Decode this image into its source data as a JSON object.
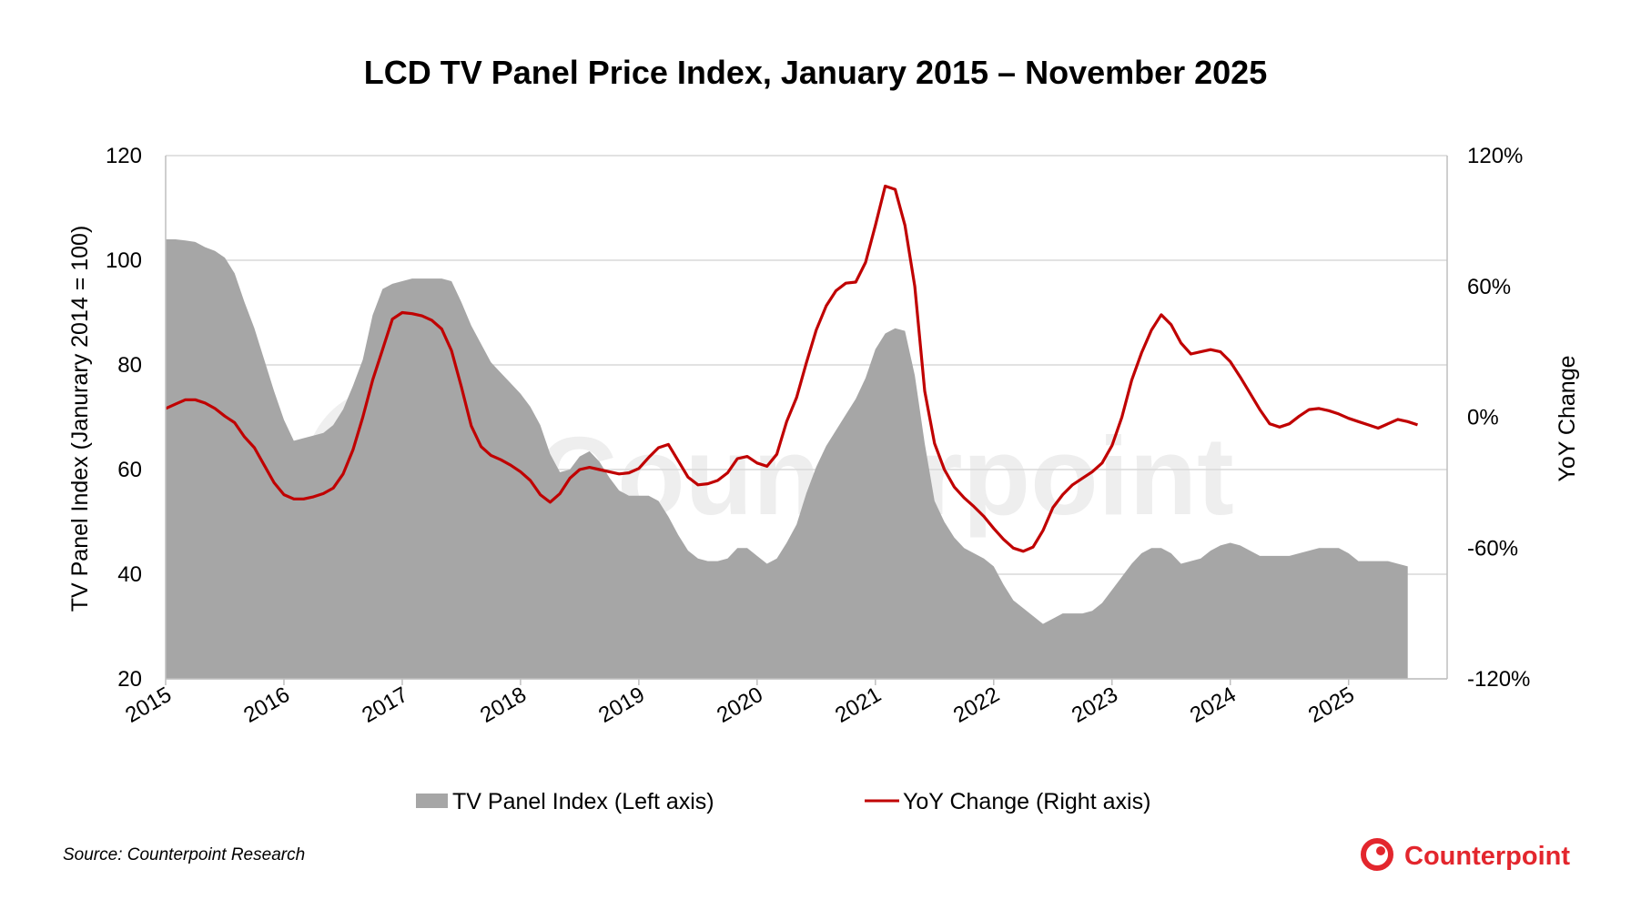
{
  "colors": {
    "area_fill": "#a6a6a6",
    "line": "#c00000",
    "grid": "#d9d9d9",
    "brand": "#e3262d",
    "watermark": "#eeeeee"
  },
  "logo": {
    "name": "Counterpoint",
    "icon": "counterpoint-logo-icon"
  },
  "watermark": {
    "text": "Counterpoint"
  },
  "source": "Source: Counterpoint Research",
  "chart_data": {
    "type": "area",
    "title": "LCD TV Panel Price Index, January 2015 – November 2025",
    "grid": true,
    "legend_position": "bottom",
    "x_tick_labels": [
      "2015",
      "2016",
      "2017",
      "2018",
      "2019",
      "2020",
      "2021",
      "2022",
      "2023",
      "2024",
      "2025"
    ],
    "y_left": {
      "label": "TV Panel Index (Janurary 2014 = 100)",
      "range": [
        20,
        120
      ],
      "ticks": [
        "20",
        "40",
        "60",
        "80",
        "100",
        "120"
      ]
    },
    "y_right": {
      "label": "YoY Change",
      "range": [
        -120,
        120
      ],
      "ticks": [
        "-120%",
        "-60%",
        "0%",
        "60%",
        "120%"
      ]
    },
    "x_start": "2015-01",
    "x_end": "2025-11",
    "series": [
      {
        "name": "TV Panel Index (Left axis)",
        "type": "area",
        "axis": "left",
        "points": [
          [
            "2015-01",
            104
          ],
          [
            "2015-02",
            104
          ],
          [
            "2015-03",
            103.8
          ],
          [
            "2015-04",
            103.5
          ],
          [
            "2015-05",
            102.5
          ],
          [
            "2015-06",
            101.8
          ],
          [
            "2015-07",
            100.5
          ],
          [
            "2015-08",
            97.5
          ],
          [
            "2015-09",
            92
          ],
          [
            "2015-10",
            87
          ],
          [
            "2015-11",
            81
          ],
          [
            "2015-12",
            75
          ],
          [
            "2016-01",
            69.5
          ],
          [
            "2016-02",
            65.5
          ],
          [
            "2016-03",
            66
          ],
          [
            "2016-04",
            66.5
          ],
          [
            "2016-05",
            67
          ],
          [
            "2016-06",
            68.5
          ],
          [
            "2016-07",
            71.5
          ],
          [
            "2016-08",
            76
          ],
          [
            "2016-09",
            81
          ],
          [
            "2016-10",
            89.5
          ],
          [
            "2016-11",
            94.5
          ],
          [
            "2016-12",
            95.5
          ],
          [
            "2017-01",
            96
          ],
          [
            "2017-02",
            96.5
          ],
          [
            "2017-03",
            96.5
          ],
          [
            "2017-04",
            96.5
          ],
          [
            "2017-05",
            96.5
          ],
          [
            "2017-06",
            96
          ],
          [
            "2017-07",
            92
          ],
          [
            "2017-08",
            87.5
          ],
          [
            "2017-09",
            84
          ],
          [
            "2017-10",
            80.5
          ],
          [
            "2017-11",
            78.5
          ],
          [
            "2017-12",
            76.5
          ],
          [
            "2018-01",
            74.5
          ],
          [
            "2018-02",
            72
          ],
          [
            "2018-03",
            68.5
          ],
          [
            "2018-04",
            63
          ],
          [
            "2018-05",
            59.5
          ],
          [
            "2018-06",
            60
          ],
          [
            "2018-07",
            62.5
          ],
          [
            "2018-08",
            63.5
          ],
          [
            "2018-09",
            61.5
          ],
          [
            "2018-10",
            58.5
          ],
          [
            "2018-11",
            56
          ],
          [
            "2018-12",
            55
          ],
          [
            "2019-01",
            55
          ],
          [
            "2019-02",
            55
          ],
          [
            "2019-03",
            54
          ],
          [
            "2019-04",
            51
          ],
          [
            "2019-05",
            47.5
          ],
          [
            "2019-06",
            44.5
          ],
          [
            "2019-07",
            43
          ],
          [
            "2019-08",
            42.5
          ],
          [
            "2019-09",
            42.5
          ],
          [
            "2019-10",
            43
          ],
          [
            "2019-11",
            45
          ],
          [
            "2019-12",
            45
          ],
          [
            "2020-01",
            43.5
          ],
          [
            "2020-02",
            42
          ],
          [
            "2020-03",
            43
          ],
          [
            "2020-04",
            46
          ],
          [
            "2020-05",
            49.5
          ],
          [
            "2020-06",
            55.5
          ],
          [
            "2020-07",
            60.5
          ],
          [
            "2020-08",
            64.5
          ],
          [
            "2020-09",
            67.5
          ],
          [
            "2020-10",
            70.5
          ],
          [
            "2020-11",
            73.5
          ],
          [
            "2020-12",
            77.5
          ],
          [
            "2021-01",
            83
          ],
          [
            "2021-02",
            86
          ],
          [
            "2021-03",
            87
          ],
          [
            "2021-04",
            86.5
          ],
          [
            "2021-05",
            78
          ],
          [
            "2021-06",
            65
          ],
          [
            "2021-07",
            54
          ],
          [
            "2021-08",
            50
          ],
          [
            "2021-09",
            47
          ],
          [
            "2021-10",
            45
          ],
          [
            "2021-11",
            44
          ],
          [
            "2021-12",
            43
          ],
          [
            "2022-01",
            41.5
          ],
          [
            "2022-02",
            38
          ],
          [
            "2022-03",
            35
          ],
          [
            "2022-04",
            33.5
          ],
          [
            "2022-05",
            32
          ],
          [
            "2022-06",
            30.5
          ],
          [
            "2022-07",
            31.5
          ],
          [
            "2022-08",
            32.5
          ],
          [
            "2022-09",
            32.5
          ],
          [
            "2022-10",
            32.5
          ],
          [
            "2022-11",
            33
          ],
          [
            "2022-12",
            34.5
          ],
          [
            "2023-01",
            37
          ],
          [
            "2023-02",
            39.5
          ],
          [
            "2023-03",
            42
          ],
          [
            "2023-04",
            44
          ],
          [
            "2023-05",
            45
          ],
          [
            "2023-06",
            45
          ],
          [
            "2023-07",
            44
          ],
          [
            "2023-08",
            42
          ],
          [
            "2023-09",
            42.5
          ],
          [
            "2023-10",
            43
          ],
          [
            "2023-11",
            44.5
          ],
          [
            "2023-12",
            45.5
          ],
          [
            "2024-01",
            46
          ],
          [
            "2024-02",
            45.5
          ],
          [
            "2024-03",
            44.5
          ],
          [
            "2024-04",
            43.5
          ],
          [
            "2024-05",
            43.5
          ],
          [
            "2024-06",
            43.5
          ],
          [
            "2024-07",
            43.5
          ],
          [
            "2024-08",
            44
          ],
          [
            "2024-09",
            44.5
          ],
          [
            "2024-10",
            45
          ],
          [
            "2024-11",
            45
          ],
          [
            "2024-12",
            45
          ],
          [
            "2025-01",
            44
          ],
          [
            "2025-02",
            42.5
          ],
          [
            "2025-03",
            42.5
          ],
          [
            "2025-04",
            42.5
          ],
          [
            "2025-05",
            42.5
          ],
          [
            "2025-06",
            42
          ],
          [
            "2025-07",
            41.5
          ]
        ]
      },
      {
        "name": "YoY Change (Right axis)",
        "type": "line",
        "axis": "right",
        "points": [
          [
            "2015-01",
            4
          ],
          [
            "2015-02",
            6
          ],
          [
            "2015-03",
            8
          ],
          [
            "2015-04",
            8
          ],
          [
            "2015-05",
            6.5
          ],
          [
            "2015-06",
            4
          ],
          [
            "2015-07",
            0.5
          ],
          [
            "2015-08",
            -2.5
          ],
          [
            "2015-09",
            -9
          ],
          [
            "2015-10",
            -14
          ],
          [
            "2015-11",
            -22
          ],
          [
            "2015-12",
            -30
          ],
          [
            "2016-01",
            -35.5
          ],
          [
            "2016-02",
            -37.5
          ],
          [
            "2016-03",
            -37.5
          ],
          [
            "2016-04",
            -36.5
          ],
          [
            "2016-05",
            -35
          ],
          [
            "2016-06",
            -32.5
          ],
          [
            "2016-07",
            -26
          ],
          [
            "2016-08",
            -15
          ],
          [
            "2016-09",
            0
          ],
          [
            "2016-10",
            17
          ],
          [
            "2016-11",
            31
          ],
          [
            "2016-12",
            45
          ],
          [
            "2017-01",
            48
          ],
          [
            "2017-02",
            47.5
          ],
          [
            "2017-03",
            46.5
          ],
          [
            "2017-04",
            44.5
          ],
          [
            "2017-05",
            40.5
          ],
          [
            "2017-06",
            30.5
          ],
          [
            "2017-07",
            14
          ],
          [
            "2017-08",
            -4
          ],
          [
            "2017-09",
            -13.5
          ],
          [
            "2017-10",
            -17.5
          ],
          [
            "2017-11",
            -19.5
          ],
          [
            "2017-12",
            -22
          ],
          [
            "2018-01",
            -25
          ],
          [
            "2018-02",
            -29
          ],
          [
            "2018-03",
            -35.5
          ],
          [
            "2018-04",
            -39
          ],
          [
            "2018-05",
            -35
          ],
          [
            "2018-06",
            -28
          ],
          [
            "2018-07",
            -24
          ],
          [
            "2018-08",
            -23
          ],
          [
            "2018-09",
            -24
          ],
          [
            "2018-10",
            -25
          ],
          [
            "2018-11",
            -26
          ],
          [
            "2018-12",
            -25.5
          ],
          [
            "2019-01",
            -23.5
          ],
          [
            "2019-02",
            -18.5
          ],
          [
            "2019-03",
            -14
          ],
          [
            "2019-04",
            -12.5
          ],
          [
            "2019-05",
            -20
          ],
          [
            "2019-06",
            -27.5
          ],
          [
            "2019-07",
            -31
          ],
          [
            "2019-08",
            -30.5
          ],
          [
            "2019-09",
            -29
          ],
          [
            "2019-10",
            -25.5
          ],
          [
            "2019-11",
            -19
          ],
          [
            "2019-12",
            -18
          ],
          [
            "2020-01",
            -21
          ],
          [
            "2020-02",
            -22.5
          ],
          [
            "2020-03",
            -17
          ],
          [
            "2020-04",
            -2
          ],
          [
            "2020-05",
            9
          ],
          [
            "2020-06",
            25
          ],
          [
            "2020-07",
            40
          ],
          [
            "2020-08",
            51
          ],
          [
            "2020-09",
            58
          ],
          [
            "2020-10",
            61.5
          ],
          [
            "2020-11",
            62
          ],
          [
            "2020-12",
            71
          ],
          [
            "2021-01",
            88
          ],
          [
            "2021-02",
            106
          ],
          [
            "2021-03",
            104.5
          ],
          [
            "2021-04",
            88
          ],
          [
            "2021-05",
            60
          ],
          [
            "2021-06",
            12
          ],
          [
            "2021-07",
            -12
          ],
          [
            "2021-08",
            -24
          ],
          [
            "2021-09",
            -32
          ],
          [
            "2021-10",
            -37
          ],
          [
            "2021-11",
            -41
          ],
          [
            "2021-12",
            -45.5
          ],
          [
            "2022-01",
            -51
          ],
          [
            "2022-02",
            -56
          ],
          [
            "2022-03",
            -60
          ],
          [
            "2022-04",
            -61.5
          ],
          [
            "2022-05",
            -59.5
          ],
          [
            "2022-06",
            -52
          ],
          [
            "2022-07",
            -41.5
          ],
          [
            "2022-08",
            -35.5
          ],
          [
            "2022-09",
            -31
          ],
          [
            "2022-10",
            -28
          ],
          [
            "2022-11",
            -25
          ],
          [
            "2022-12",
            -21
          ],
          [
            "2023-01",
            -13
          ],
          [
            "2023-02",
            0
          ],
          [
            "2023-03",
            17
          ],
          [
            "2023-04",
            29.5
          ],
          [
            "2023-05",
            40
          ],
          [
            "2023-06",
            47
          ],
          [
            "2023-07",
            42.5
          ],
          [
            "2023-08",
            34
          ],
          [
            "2023-09",
            29
          ],
          [
            "2023-10",
            30
          ],
          [
            "2023-11",
            31
          ],
          [
            "2023-12",
            30
          ],
          [
            "2024-01",
            25.5
          ],
          [
            "2024-02",
            18.5
          ],
          [
            "2024-03",
            11
          ],
          [
            "2024-04",
            3.5
          ],
          [
            "2024-05",
            -3
          ],
          [
            "2024-06",
            -4.5
          ],
          [
            "2024-07",
            -3
          ],
          [
            "2024-08",
            0.5
          ],
          [
            "2024-09",
            3.5
          ],
          [
            "2024-10",
            4
          ],
          [
            "2024-11",
            3
          ],
          [
            "2024-12",
            1.5
          ],
          [
            "2025-01",
            -0.5
          ],
          [
            "2025-02",
            -2
          ],
          [
            "2025-03",
            -3.5
          ],
          [
            "2025-04",
            -5
          ],
          [
            "2025-05",
            -3
          ],
          [
            "2025-06",
            -1
          ],
          [
            "2025-07",
            -2
          ],
          [
            "2025-08",
            -3.5
          ]
        ]
      }
    ]
  }
}
